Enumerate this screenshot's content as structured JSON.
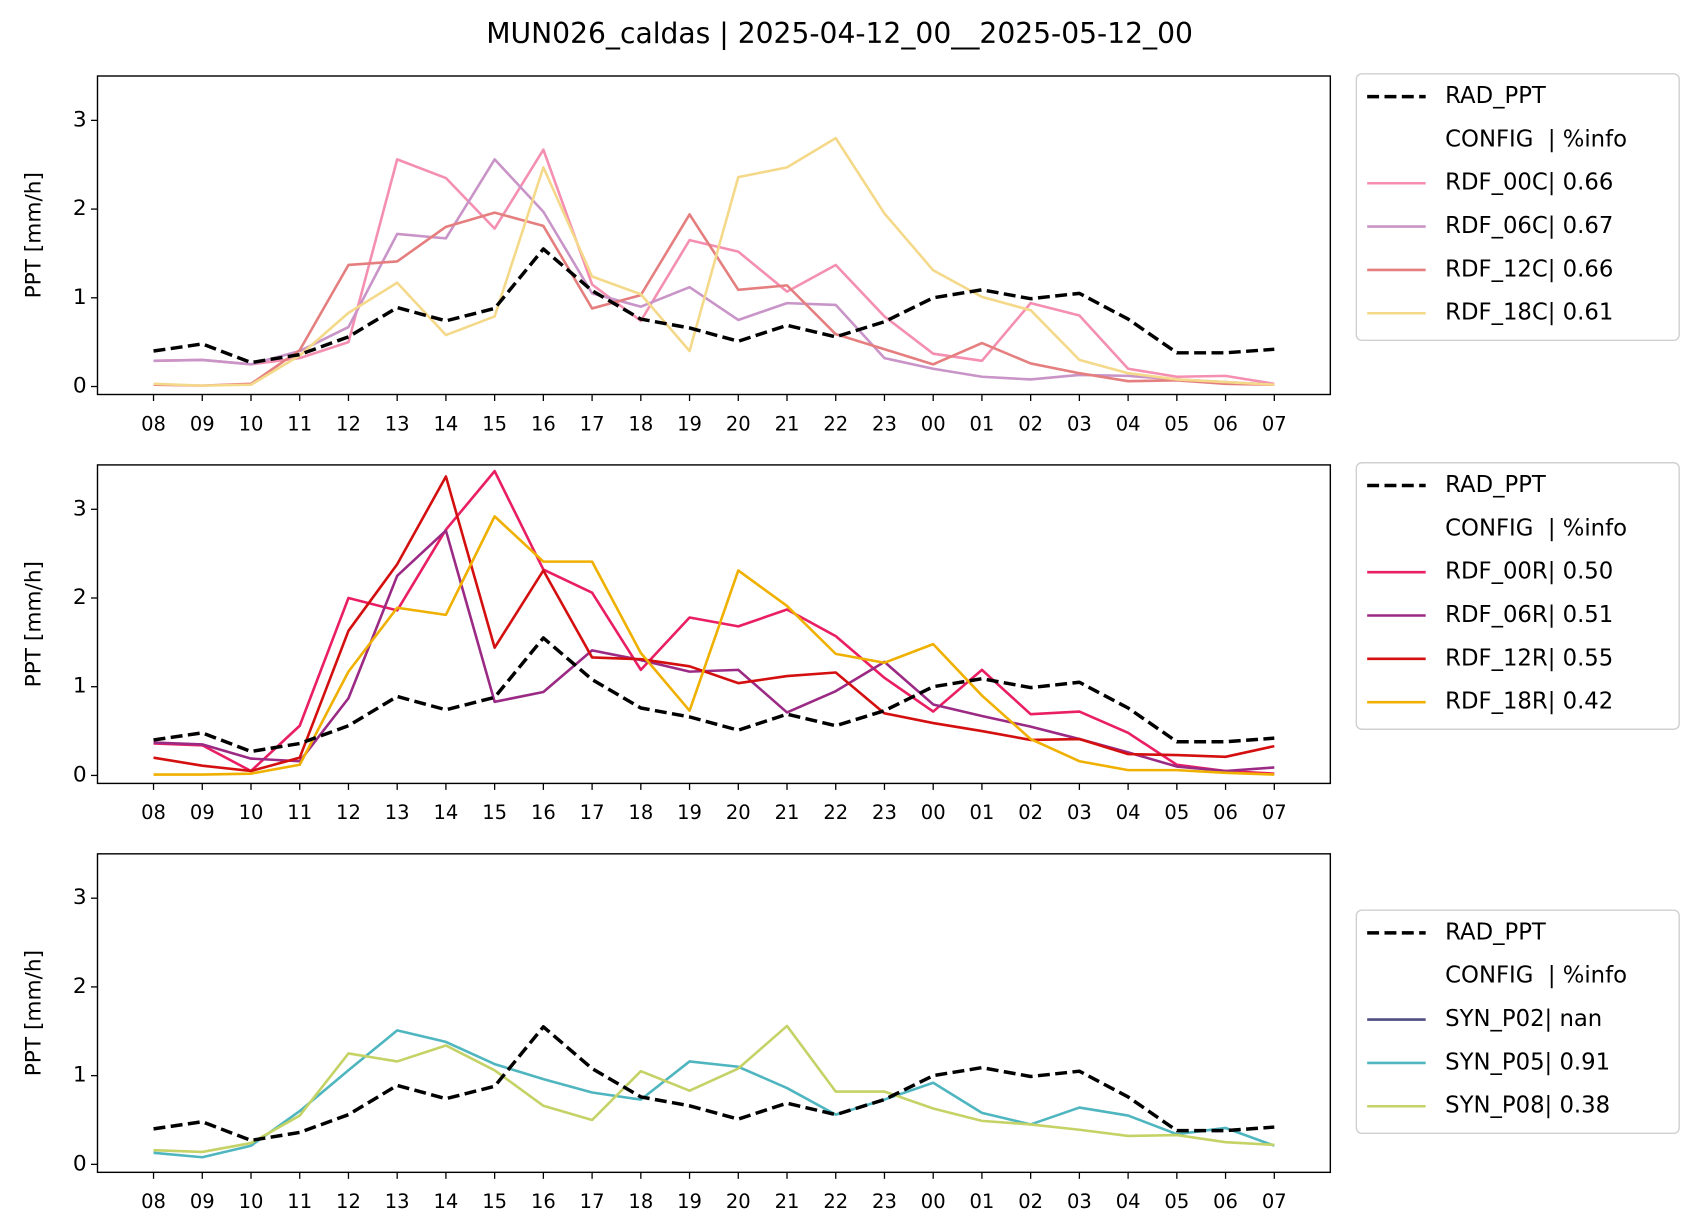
{
  "title": "MUN026_caldas | 2025-04-12_00__2025-05-12_00",
  "chart_data": [
    {
      "type": "line",
      "ylabel": "PPT [mm/h]",
      "categories": [
        "08",
        "09",
        "10",
        "11",
        "12",
        "13",
        "14",
        "15",
        "16",
        "17",
        "18",
        "19",
        "20",
        "21",
        "22",
        "23",
        "00",
        "01",
        "02",
        "03",
        "04",
        "05",
        "06",
        "07"
      ],
      "ylim": [
        -0.09,
        3.5
      ],
      "yticks": [
        0,
        1,
        2,
        3
      ],
      "legend_loc": "upper left",
      "legend_header": "CONFIG  | %info",
      "series": [
        {
          "name": "RAD_PPT",
          "color": "#000000",
          "dashed": true,
          "values": [
            0.4,
            0.48,
            0.27,
            0.36,
            0.56,
            0.89,
            0.74,
            0.88,
            1.55,
            1.08,
            0.76,
            0.66,
            0.51,
            0.69,
            0.56,
            0.73,
            1.0,
            1.09,
            0.99,
            1.05,
            0.76,
            0.38,
            0.38,
            0.42
          ]
        },
        {
          "name": "RDF_00C| 0.66",
          "color": "#f48fb1",
          "values": [
            0.29,
            0.3,
            0.25,
            0.32,
            0.5,
            2.56,
            2.35,
            1.78,
            2.67,
            1.15,
            0.74,
            1.65,
            1.52,
            1.07,
            1.37,
            0.79,
            0.37,
            0.29,
            0.94,
            0.8,
            0.2,
            0.11,
            0.12,
            0.03
          ]
        },
        {
          "name": "RDF_06C| 0.67",
          "color": "#c994c7",
          "values": [
            0.29,
            0.3,
            0.25,
            0.4,
            0.67,
            1.72,
            1.67,
            2.56,
            1.97,
            1.05,
            0.9,
            1.12,
            0.75,
            0.94,
            0.92,
            0.32,
            0.2,
            0.11,
            0.08,
            0.13,
            0.12,
            0.08,
            0.05,
            0.02
          ]
        },
        {
          "name": "RDF_12C| 0.66",
          "color": "#e57f7f",
          "values": [
            0.02,
            0.01,
            0.03,
            0.41,
            1.37,
            1.41,
            1.8,
            1.96,
            1.81,
            0.88,
            1.03,
            1.94,
            1.09,
            1.14,
            0.59,
            0.42,
            0.25,
            0.49,
            0.26,
            0.15,
            0.06,
            0.07,
            0.03,
            0.02
          ]
        },
        {
          "name": "RDF_18C| 0.61",
          "color": "#f5d98a",
          "values": [
            0.03,
            0.01,
            0.02,
            0.35,
            0.83,
            1.17,
            0.58,
            0.79,
            2.47,
            1.24,
            1.04,
            0.4,
            2.36,
            2.47,
            2.8,
            1.95,
            1.31,
            1.01,
            0.86,
            0.3,
            0.15,
            0.08,
            0.05,
            0.02
          ]
        }
      ]
    },
    {
      "type": "line",
      "ylabel": "PPT [mm/h]",
      "categories": [
        "08",
        "09",
        "10",
        "11",
        "12",
        "13",
        "14",
        "15",
        "16",
        "17",
        "18",
        "19",
        "20",
        "21",
        "22",
        "23",
        "00",
        "01",
        "02",
        "03",
        "04",
        "05",
        "06",
        "07"
      ],
      "ylim": [
        -0.09,
        3.5
      ],
      "yticks": [
        0,
        1,
        2,
        3
      ],
      "legend_loc": "upper left",
      "legend_header": "CONFIG  | %info",
      "series": [
        {
          "name": "RAD_PPT",
          "color": "#000000",
          "dashed": true,
          "values": [
            0.4,
            0.48,
            0.27,
            0.36,
            0.56,
            0.89,
            0.74,
            0.88,
            1.55,
            1.08,
            0.76,
            0.66,
            0.51,
            0.69,
            0.56,
            0.73,
            1.0,
            1.09,
            0.99,
            1.05,
            0.76,
            0.38,
            0.38,
            0.42
          ]
        },
        {
          "name": "RDF_00R| 0.50",
          "color": "#e91e63",
          "values": [
            0.36,
            0.34,
            0.05,
            0.56,
            2.0,
            1.86,
            2.77,
            3.43,
            2.32,
            2.06,
            1.19,
            1.78,
            1.68,
            1.87,
            1.57,
            1.1,
            0.72,
            1.19,
            0.69,
            0.72,
            0.48,
            0.12,
            0.05,
            0.02
          ]
        },
        {
          "name": "RDF_06R| 0.51",
          "color": "#9b2a85",
          "values": [
            0.37,
            0.35,
            0.19,
            0.16,
            0.87,
            2.25,
            2.76,
            0.83,
            0.94,
            1.41,
            1.3,
            1.17,
            1.19,
            0.71,
            0.95,
            1.28,
            0.8,
            0.67,
            0.55,
            0.41,
            0.26,
            0.1,
            0.05,
            0.09
          ]
        },
        {
          "name": "RDF_12R| 0.55",
          "color": "#d40f0f",
          "values": [
            0.2,
            0.11,
            0.05,
            0.2,
            1.63,
            2.38,
            3.37,
            1.44,
            2.31,
            1.33,
            1.31,
            1.23,
            1.04,
            1.12,
            1.16,
            0.7,
            0.59,
            0.5,
            0.4,
            0.41,
            0.24,
            0.23,
            0.21,
            0.33
          ]
        },
        {
          "name": "RDF_18R| 0.42",
          "color": "#f0b000",
          "values": [
            0.01,
            0.01,
            0.02,
            0.12,
            1.17,
            1.89,
            1.81,
            2.92,
            2.41,
            2.41,
            1.38,
            0.73,
            2.31,
            1.91,
            1.37,
            1.27,
            1.48,
            0.9,
            0.41,
            0.16,
            0.06,
            0.06,
            0.03,
            0.01
          ]
        }
      ]
    },
    {
      "type": "line",
      "ylabel": "PPT [mm/h]",
      "categories": [
        "08",
        "09",
        "10",
        "11",
        "12",
        "13",
        "14",
        "15",
        "16",
        "17",
        "18",
        "19",
        "20",
        "21",
        "22",
        "23",
        "00",
        "01",
        "02",
        "03",
        "04",
        "05",
        "06",
        "07"
      ],
      "ylim": [
        -0.09,
        3.5
      ],
      "yticks": [
        0,
        1,
        2,
        3
      ],
      "legend_loc": "center left",
      "legend_header": "CONFIG  | %info",
      "series": [
        {
          "name": "RAD_PPT",
          "color": "#000000",
          "dashed": true,
          "values": [
            0.4,
            0.48,
            0.27,
            0.36,
            0.56,
            0.89,
            0.74,
            0.88,
            1.55,
            1.08,
            0.76,
            0.66,
            0.51,
            0.69,
            0.56,
            0.73,
            1.0,
            1.09,
            0.99,
            1.05,
            0.76,
            0.38,
            0.38,
            0.42
          ]
        },
        {
          "name": "SYN_P02| nan",
          "color": "#4e4d80",
          "values": [
            null,
            null,
            null,
            null,
            null,
            null,
            null,
            null,
            null,
            null,
            null,
            null,
            null,
            null,
            null,
            null,
            null,
            null,
            null,
            null,
            null,
            null,
            null,
            null
          ]
        },
        {
          "name": "SYN_P05| 0.91",
          "color": "#4fb6c0",
          "values": [
            0.13,
            0.08,
            0.21,
            0.6,
            1.06,
            1.51,
            1.38,
            1.13,
            0.96,
            0.81,
            0.73,
            1.16,
            1.1,
            0.86,
            0.56,
            0.73,
            0.92,
            0.58,
            0.45,
            0.64,
            0.55,
            0.34,
            0.41,
            0.21
          ]
        },
        {
          "name": "SYN_P08| 0.38",
          "color": "#c5d266",
          "values": [
            0.16,
            0.14,
            0.24,
            0.55,
            1.25,
            1.16,
            1.34,
            1.06,
            0.66,
            0.5,
            1.05,
            0.83,
            1.08,
            1.56,
            0.82,
            0.82,
            0.63,
            0.49,
            0.45,
            0.39,
            0.32,
            0.33,
            0.25,
            0.22
          ]
        }
      ]
    }
  ]
}
